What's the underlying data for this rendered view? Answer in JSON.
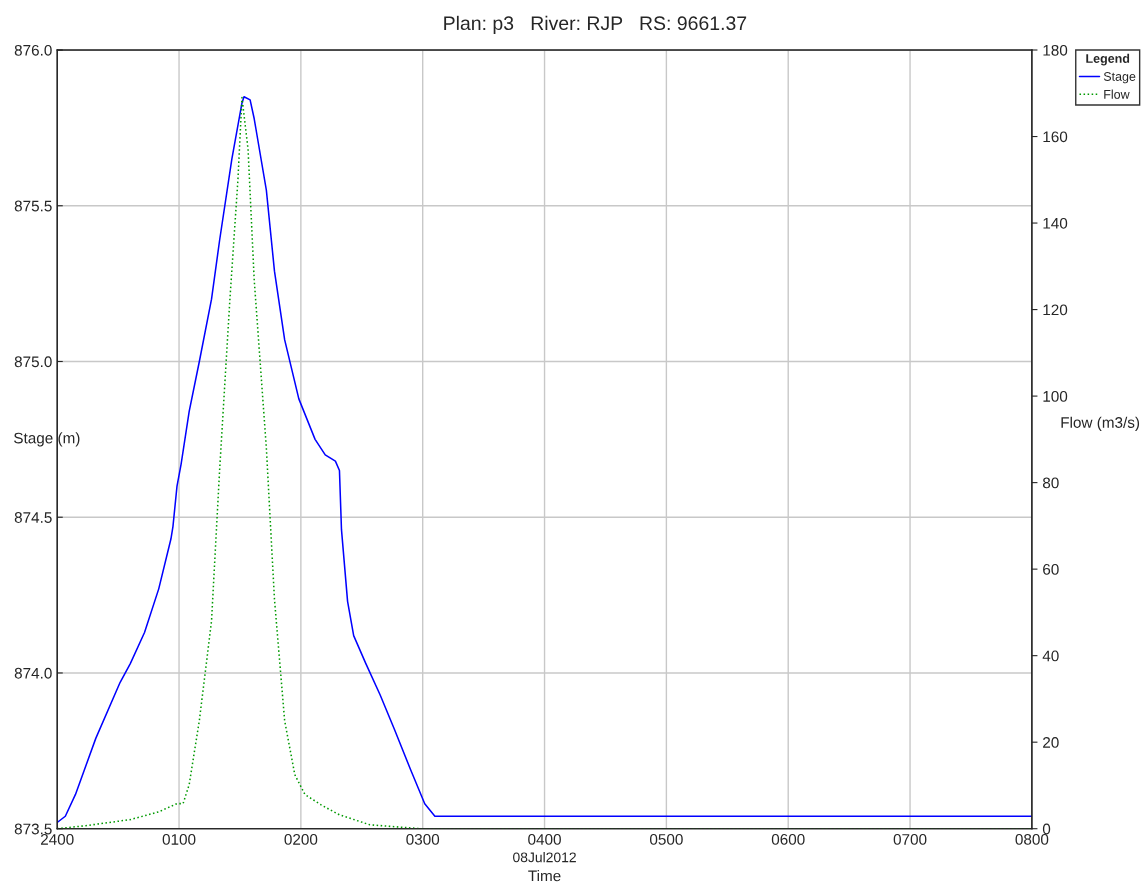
{
  "chart_data": {
    "type": "line",
    "title": "Plan: p3   River: RJP   RS: 9661.37",
    "xlabel": "Time",
    "ylabel": "Stage (m)",
    "y2label": "Flow (m3/s)",
    "legend_title": "Legend",
    "annotations": [
      "08Jul2012"
    ],
    "xlim": [
      "2012-07-08T00:00",
      "2012-07-08T08:00"
    ],
    "xticks": [
      {
        "value": "2012-07-08T00:00",
        "label": "2400"
      },
      {
        "value": "2012-07-08T01:00",
        "label": "0100"
      },
      {
        "value": "2012-07-08T02:00",
        "label": "0200"
      },
      {
        "value": "2012-07-08T03:00",
        "label": "0300"
      },
      {
        "value": "2012-07-08T04:00",
        "label": "0400"
      },
      {
        "value": "2012-07-08T05:00",
        "label": "0500"
      },
      {
        "value": "2012-07-08T06:00",
        "label": "0600"
      },
      {
        "value": "2012-07-08T07:00",
        "label": "0700"
      },
      {
        "value": "2012-07-08T08:00",
        "label": "0800"
      }
    ],
    "ylim": [
      873.5,
      876.0
    ],
    "yticks": [
      {
        "value": 873.5,
        "label": "873.5"
      },
      {
        "value": 874.0,
        "label": "874.0"
      },
      {
        "value": 874.5,
        "label": "874.5"
      },
      {
        "value": 875.0,
        "label": "875.0"
      },
      {
        "value": 875.5,
        "label": "875.5"
      },
      {
        "value": 876.0,
        "label": "876.0"
      }
    ],
    "y2lim": [
      0,
      180
    ],
    "y2ticks": [
      0,
      20,
      40,
      60,
      80,
      100,
      120,
      140,
      160,
      180
    ],
    "grid": true,
    "legend": "top right",
    "series": [
      {
        "name": "Stage",
        "color": "#0000ff",
        "line_style": "solid",
        "x": [
          "2012-07-08T00:00",
          "2012-07-08T00:04",
          "2012-07-08T00:09",
          "2012-07-08T00:19",
          "2012-07-08T00:31",
          "2012-07-08T00:36",
          "2012-07-08T00:43",
          "2012-07-08T00:50",
          "2012-07-08T00:56",
          "2012-07-08T00:57",
          "2012-07-08T00:59",
          "2012-07-08T01:01",
          "2012-07-08T01:05",
          "2012-07-08T01:10",
          "2012-07-08T01:16",
          "2012-07-08T01:20",
          "2012-07-08T01:26",
          "2012-07-08T01:31",
          "2012-07-08T01:32",
          "2012-07-08T01:35",
          "2012-07-08T01:37",
          "2012-07-08T01:43",
          "2012-07-08T01:47",
          "2012-07-08T01:52",
          "2012-07-08T01:59",
          "2012-07-08T02:07",
          "2012-07-08T02:12",
          "2012-07-08T02:17",
          "2012-07-08T02:19",
          "2012-07-08T02:20",
          "2012-07-08T02:23",
          "2012-07-08T02:26",
          "2012-07-08T02:32",
          "2012-07-08T02:39",
          "2012-07-08T02:46",
          "2012-07-08T02:54",
          "2012-07-08T03:01",
          "2012-07-08T03:06",
          "2012-07-08T03:08",
          "2012-07-08T08:00"
        ],
        "values": [
          873.52,
          873.54,
          873.61,
          873.79,
          873.97,
          874.03,
          874.13,
          874.27,
          874.43,
          874.47,
          874.6,
          874.67,
          874.84,
          875.0,
          875.2,
          875.39,
          875.65,
          875.83,
          875.85,
          875.84,
          875.78,
          875.55,
          875.29,
          875.07,
          874.88,
          874.75,
          874.7,
          874.68,
          874.65,
          874.46,
          874.23,
          874.12,
          874.03,
          873.93,
          873.82,
          873.69,
          873.58,
          873.54,
          873.54,
          873.54
        ]
      },
      {
        "name": "Flow",
        "color": "#009900",
        "line_style": "dotted",
        "axis": "y2",
        "x": [
          "2012-07-08T00:00",
          "2012-07-08T00:14",
          "2012-07-08T00:36",
          "2012-07-08T00:50",
          "2012-07-08T00:59",
          "2012-07-08T01:02",
          "2012-07-08T01:05",
          "2012-07-08T01:10",
          "2012-07-08T01:16",
          "2012-07-08T01:20",
          "2012-07-08T01:25",
          "2012-07-08T01:29",
          "2012-07-08T01:31",
          "2012-07-08T01:34",
          "2012-07-08T01:37",
          "2012-07-08T01:43",
          "2012-07-08T01:47",
          "2012-07-08T01:52",
          "2012-07-08T01:57",
          "2012-07-08T02:02",
          "2012-07-08T02:10",
          "2012-07-08T02:19",
          "2012-07-08T02:34",
          "2012-07-08T02:59",
          "2012-07-08T08:00"
        ],
        "values": [
          0,
          0.7,
          2.1,
          3.9,
          5.8,
          5.8,
          10.2,
          25,
          48,
          83,
          122,
          150,
          169,
          157,
          127,
          88,
          53,
          25,
          12.5,
          7.9,
          5.5,
          3.2,
          0.9,
          0,
          0
        ]
      }
    ]
  }
}
